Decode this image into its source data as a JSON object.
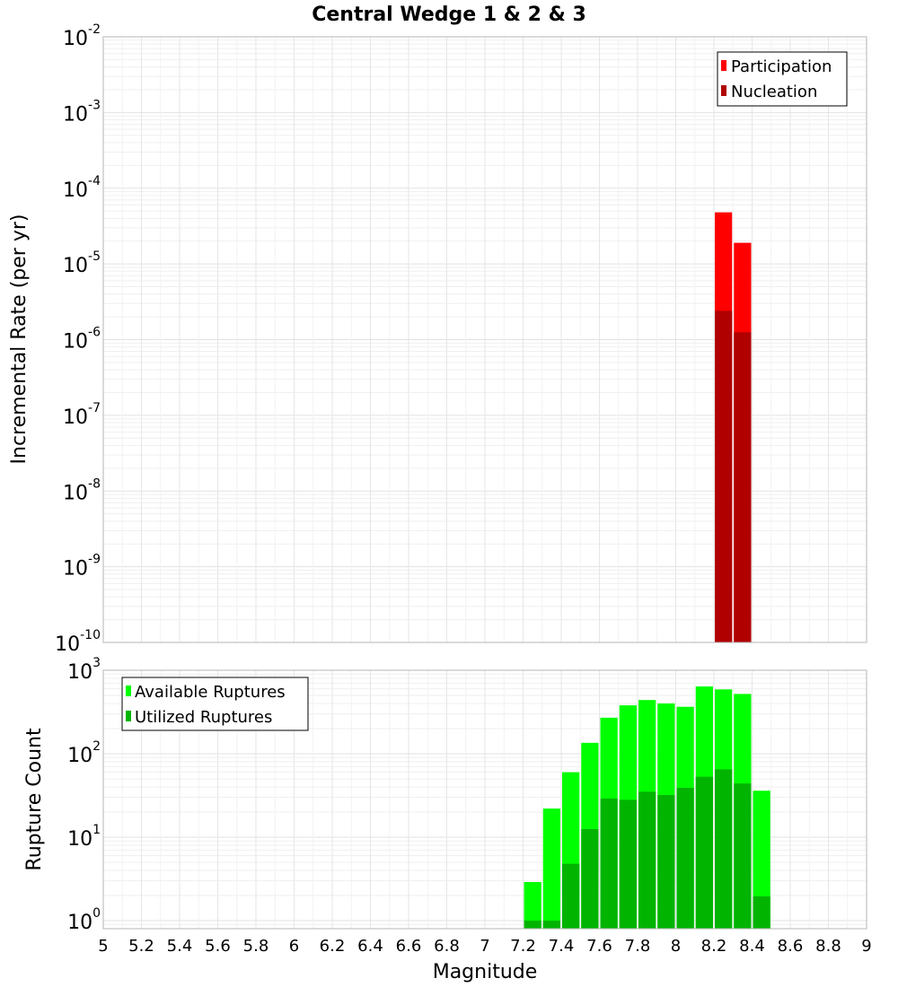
{
  "chart_data": [
    {
      "type": "bar",
      "title": "Central Wedge 1 & 2 & 3",
      "xlabel": "Magnitude",
      "ylabel": "Incremental Rate (per yr)",
      "yscale": "log",
      "xlim": [
        5,
        9
      ],
      "ylim": [
        1e-10,
        0.01
      ],
      "y_ticks": [
        {
          "base": "10",
          "exp": "-2",
          "value": 0.01
        },
        {
          "base": "10",
          "exp": "-3",
          "value": 0.001
        },
        {
          "base": "10",
          "exp": "-4",
          "value": 0.0001
        },
        {
          "base": "10",
          "exp": "-5",
          "value": 1e-05
        },
        {
          "base": "10",
          "exp": "-6",
          "value": 1e-06
        },
        {
          "base": "10",
          "exp": "-7",
          "value": 1e-07
        },
        {
          "base": "10",
          "exp": "-8",
          "value": 1e-08
        },
        {
          "base": "10",
          "exp": "-9",
          "value": 1e-09
        },
        {
          "base": "10",
          "exp": "-10",
          "value": 1e-10
        }
      ],
      "bin_width": 0.1,
      "legend_position": "top-right",
      "series": [
        {
          "name": "Participation",
          "color": "#ff0000",
          "x": [
            8.25,
            8.35
          ],
          "values": [
            4.8e-05,
            1.9e-05
          ]
        },
        {
          "name": "Nucleation",
          "color": "#b00000",
          "x": [
            8.25,
            8.35
          ],
          "values": [
            2.4e-06,
            1.25e-06
          ]
        }
      ]
    },
    {
      "type": "bar",
      "title": "",
      "xlabel": "Magnitude",
      "ylabel": "Rupture Count",
      "yscale": "log",
      "xlim": [
        5,
        9
      ],
      "ylim": [
        0.8,
        1000
      ],
      "y_ticks": [
        {
          "base": "10",
          "exp": "3",
          "value": 1000
        },
        {
          "base": "10",
          "exp": "2",
          "value": 100
        },
        {
          "base": "10",
          "exp": "1",
          "value": 10
        },
        {
          "base": "10",
          "exp": "0",
          "value": 1
        }
      ],
      "bin_width": 0.1,
      "legend_position": "top-left",
      "series": [
        {
          "name": "Available Ruptures",
          "color": "#00ff00",
          "x": [
            7.25,
            7.35,
            7.45,
            7.55,
            7.65,
            7.75,
            7.85,
            7.95,
            8.05,
            8.15,
            8.25,
            8.35,
            8.45
          ],
          "values": [
            2.9,
            22,
            60,
            135,
            270,
            380,
            440,
            400,
            365,
            640,
            590,
            520,
            36
          ]
        },
        {
          "name": "Utilized Ruptures",
          "color": "#00b400",
          "x": [
            7.25,
            7.35,
            7.45,
            7.55,
            7.65,
            7.75,
            7.85,
            7.95,
            8.05,
            8.15,
            8.25,
            8.35,
            8.45
          ],
          "values": [
            1.0,
            1.0,
            4.8,
            12.5,
            29,
            28,
            35,
            32,
            39,
            53,
            65,
            44,
            1.95
          ]
        }
      ]
    }
  ],
  "x_ticks": [
    "5",
    "5.2",
    "5.4",
    "5.6",
    "5.8",
    "6",
    "6.2",
    "6.4",
    "6.6",
    "6.8",
    "7",
    "7.2",
    "7.4",
    "7.6",
    "7.8",
    "8",
    "8.2",
    "8.4",
    "8.6",
    "8.8",
    "9"
  ]
}
